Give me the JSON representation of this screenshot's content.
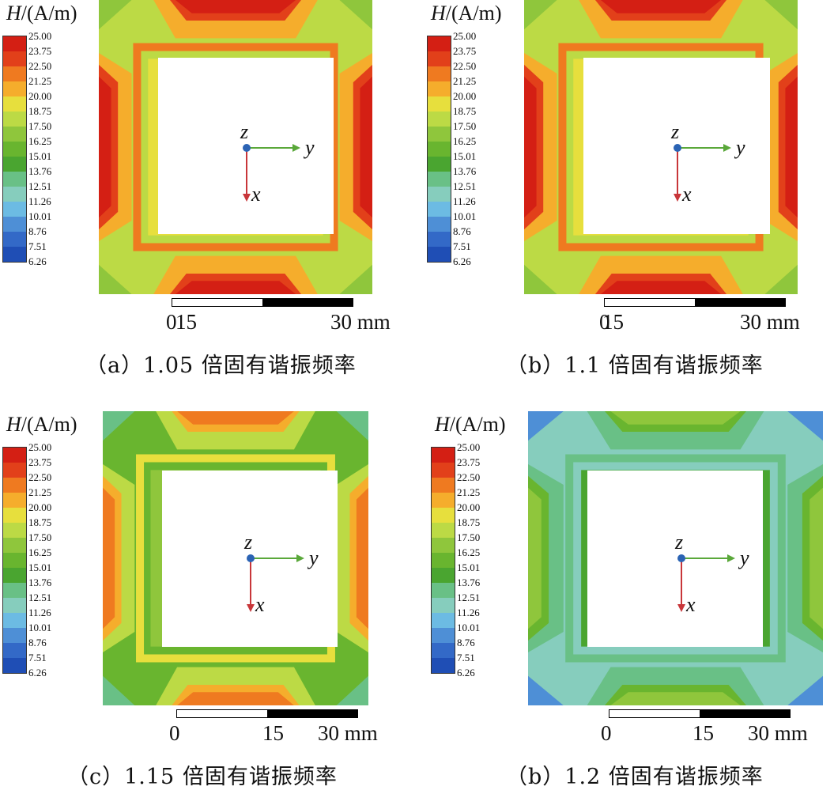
{
  "legend": {
    "title_symbol": "H",
    "title_unit": "/(A/m)",
    "ticks": [
      "25.00",
      "23.75",
      "22.50",
      "21.25",
      "20.00",
      "18.75",
      "17.50",
      "16.25",
      "15.01",
      "13.76",
      "12.51",
      "11.26",
      "10.01",
      "8.76",
      "7.51",
      "6.26"
    ],
    "colors": [
      "#d41f14",
      "#e2401a",
      "#ef7a20",
      "#f5ad2c",
      "#e7df3d",
      "#bcda45",
      "#8fc63c",
      "#69b52f",
      "#4aa530",
      "#69c086",
      "#86cdbd",
      "#6cbbe3",
      "#4e8fd6",
      "#3369c7",
      "#1f4eb5"
    ]
  },
  "axes": {
    "z": "z",
    "y": "y",
    "x": "x"
  },
  "scale": {
    "l0": "0",
    "l15": "15",
    "l30": "30 mm"
  },
  "panels": [
    {
      "caption": "（a）1.05 倍固有谐振频率",
      "level": "high"
    },
    {
      "caption": "（b）1.1 倍固有谐振频率",
      "level": "high"
    },
    {
      "caption": "（c）1.15 倍固有谐振频率",
      "level": "mid"
    },
    {
      "caption": "（b）1.2 倍固有谐振频率",
      "level": "low"
    }
  ]
}
